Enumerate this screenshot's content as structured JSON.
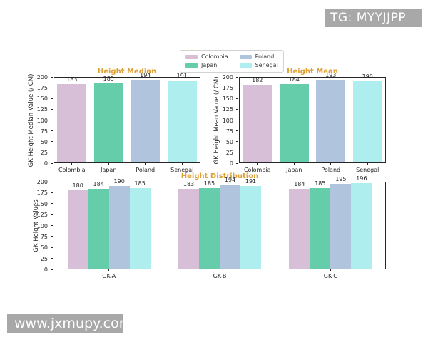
{
  "watermarks": {
    "top_right": "TG: MYYJJPP",
    "bottom_left": "www.jxmupy.com"
  },
  "legend": {
    "items": [
      {
        "label": "Colombia",
        "color": "#D8BFD8"
      },
      {
        "label": "Japan",
        "color": "#66CDAA"
      },
      {
        "label": "Poland",
        "color": "#B0C4DE"
      },
      {
        "label": "Senegal",
        "color": "#AFEEEE"
      }
    ]
  },
  "colors": {
    "title": "#DFA033",
    "axis_text": "#262626",
    "plot_border": "#262626",
    "watermark_bg": "#A8A8A8",
    "watermark_text": "#FFFFFF"
  },
  "chart_data": [
    {
      "type": "bar",
      "title": "Height Median",
      "ylabel": "GK Height Median Value (/ CM)",
      "xlabel": "",
      "categories": [
        "Colombia",
        "Japan",
        "Poland",
        "Senegal"
      ],
      "values": [
        183,
        185,
        194,
        191
      ],
      "ylim": [
        0,
        200
      ],
      "yticks": [
        0,
        25,
        50,
        75,
        100,
        125,
        150,
        175,
        200
      ],
      "grid": false
    },
    {
      "type": "bar",
      "title": "Height Mean",
      "ylabel": "GK Height Mean Value (/ CM)",
      "xlabel": "",
      "categories": [
        "Colombia",
        "Japan",
        "Poland",
        "Senegal"
      ],
      "values": [
        182,
        184,
        193,
        190
      ],
      "ylim": [
        0,
        200
      ],
      "yticks": [
        0,
        25,
        50,
        75,
        100,
        125,
        150,
        175,
        200
      ],
      "grid": false
    },
    {
      "type": "bar",
      "title": "Height Distribution",
      "ylabel": "GK Height Values",
      "xlabel": "",
      "categories": [
        "GK-A",
        "GK-B",
        "GK-C"
      ],
      "series": [
        {
          "name": "Colombia",
          "values": [
            180,
            183,
            184
          ]
        },
        {
          "name": "Japan",
          "values": [
            184,
            185,
            185
          ]
        },
        {
          "name": "Poland",
          "values": [
            190,
            194,
            195
          ]
        },
        {
          "name": "Senegal",
          "values": [
            185,
            191,
            196
          ]
        }
      ],
      "ylim": [
        0,
        200
      ],
      "yticks": [
        0,
        25,
        50,
        75,
        100,
        125,
        150,
        175,
        200
      ],
      "grid": false,
      "legend_position": "top-center"
    }
  ]
}
